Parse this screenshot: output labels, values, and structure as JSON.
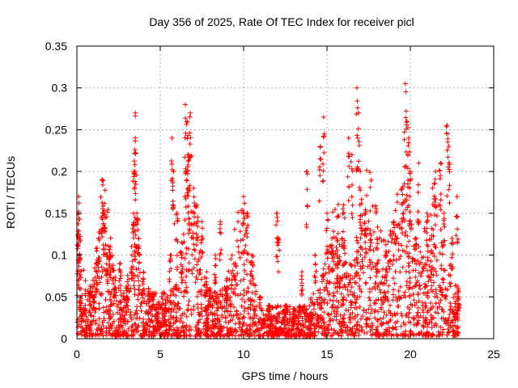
{
  "chart_data": {
    "type": "scatter",
    "title": "Day 356 of 2025, Rate Of TEC Index for receiver picl",
    "xlabel": "GPS time / hours",
    "ylabel": "ROTI / TECUs",
    "xlim": [
      0,
      25
    ],
    "ylim": [
      0,
      0.35
    ],
    "x_ticks": [
      0,
      5,
      10,
      15,
      20,
      25
    ],
    "y_ticks": [
      0,
      0.05,
      0.1,
      0.15,
      0.2,
      0.25,
      0.3,
      0.35
    ],
    "x_tick_labels": [
      "0",
      "5",
      "10",
      "15",
      "20",
      "25"
    ],
    "y_tick_labels": [
      "0",
      "0.05",
      "0.1",
      "0.15",
      "0.2",
      "0.25",
      "0.3",
      "0.35"
    ],
    "grid": true,
    "marker": "+",
    "colors": {
      "points": "#ff0000",
      "grid": "#a0a0a0",
      "axes": "#000000"
    },
    "data_range_hours": [
      0,
      22.9
    ],
    "series": [
      {
        "values": [
          [
            0.1,
            0.17
          ],
          [
            0.1,
            0.125
          ],
          [
            0.15,
            0.1
          ],
          [
            0.2,
            0.05
          ],
          [
            0.3,
            0.03
          ],
          [
            0.5,
            0.04
          ],
          [
            0.8,
            0.06
          ],
          [
            1.0,
            0.05
          ],
          [
            1.2,
            0.08
          ],
          [
            1.3,
            0.12
          ],
          [
            1.5,
            0.19
          ],
          [
            1.6,
            0.15
          ],
          [
            1.8,
            0.1
          ],
          [
            2.0,
            0.11
          ],
          [
            2.3,
            0.07
          ],
          [
            2.6,
            0.09
          ],
          [
            3.0,
            0.06
          ],
          [
            3.3,
            0.1
          ],
          [
            3.5,
            0.27
          ],
          [
            3.5,
            0.24
          ],
          [
            3.4,
            0.2
          ],
          [
            3.6,
            0.15
          ],
          [
            3.7,
            0.12
          ],
          [
            4.0,
            0.08
          ],
          [
            4.3,
            0.06
          ],
          [
            4.5,
            0.05
          ],
          [
            4.8,
            0.03
          ],
          [
            5.0,
            0.02
          ],
          [
            5.3,
            0.04
          ],
          [
            5.6,
            0.1
          ],
          [
            5.7,
            0.24
          ],
          [
            5.8,
            0.2
          ],
          [
            6.0,
            0.15
          ],
          [
            6.3,
            0.1
          ],
          [
            6.5,
            0.28
          ],
          [
            6.6,
            0.26
          ],
          [
            6.7,
            0.22
          ],
          [
            6.8,
            0.27
          ],
          [
            7.0,
            0.18
          ],
          [
            7.2,
            0.16
          ],
          [
            7.5,
            0.14
          ],
          [
            7.8,
            0.08
          ],
          [
            8.0,
            0.06
          ],
          [
            8.3,
            0.1
          ],
          [
            8.6,
            0.14
          ],
          [
            9.0,
            0.07
          ],
          [
            9.5,
            0.09
          ],
          [
            10.0,
            0.17
          ],
          [
            10.2,
            0.15
          ],
          [
            10.5,
            0.1
          ],
          [
            11.0,
            0.05
          ],
          [
            11.5,
            0.04
          ],
          [
            12.0,
            0.15
          ],
          [
            12.1,
            0.12
          ],
          [
            12.5,
            0.04
          ],
          [
            13.0,
            0.03
          ],
          [
            13.5,
            0.08
          ],
          [
            13.8,
            0.2
          ],
          [
            14.0,
            0.03
          ],
          [
            14.3,
            0.1
          ],
          [
            14.6,
            0.23
          ],
          [
            14.8,
            0.265
          ],
          [
            15.0,
            0.15
          ],
          [
            15.3,
            0.12
          ],
          [
            15.6,
            0.1
          ],
          [
            16.0,
            0.16
          ],
          [
            16.3,
            0.24
          ],
          [
            16.5,
            0.22
          ],
          [
            16.8,
            0.3
          ],
          [
            16.9,
            0.27
          ],
          [
            17.0,
            0.2
          ],
          [
            17.3,
            0.15
          ],
          [
            17.6,
            0.13
          ],
          [
            18.0,
            0.12
          ],
          [
            18.5,
            0.1
          ],
          [
            19.0,
            0.14
          ],
          [
            19.5,
            0.18
          ],
          [
            19.7,
            0.305
          ],
          [
            19.8,
            0.26
          ],
          [
            19.9,
            0.24
          ],
          [
            20.0,
            0.2
          ],
          [
            20.3,
            0.12
          ],
          [
            20.5,
            0.21
          ],
          [
            21.0,
            0.15
          ],
          [
            21.5,
            0.2
          ],
          [
            21.8,
            0.21
          ],
          [
            22.0,
            0.15
          ],
          [
            22.2,
            0.255
          ],
          [
            22.3,
            0.23
          ],
          [
            22.5,
            0.12
          ],
          [
            22.8,
            0.17
          ],
          [
            22.9,
            0.05
          ]
        ]
      }
    ]
  }
}
